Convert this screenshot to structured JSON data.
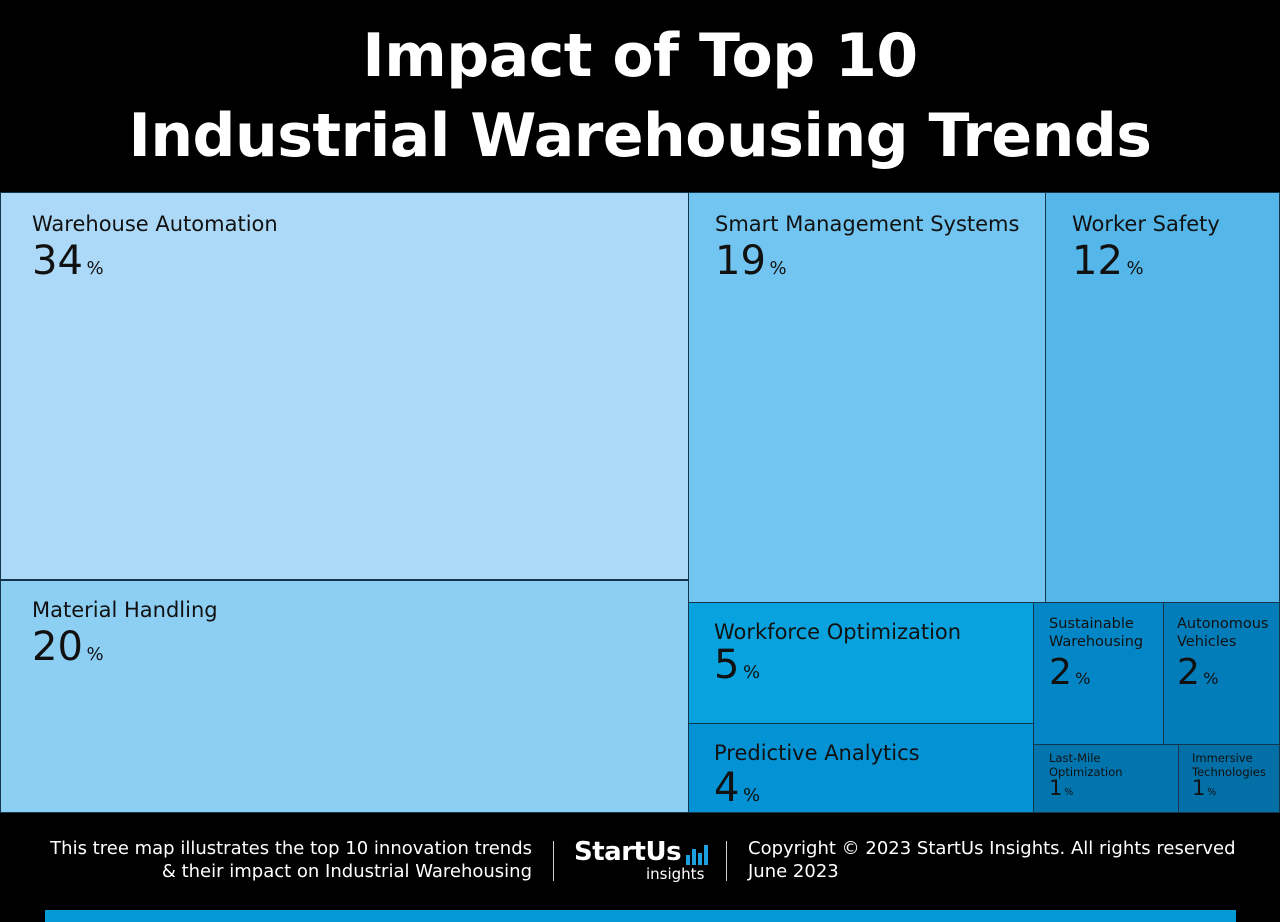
{
  "header": {
    "title_line1": "Impact of Top 10",
    "title_line2": "Industrial Warehousing Trends"
  },
  "chart_data": {
    "type": "treemap",
    "title": "Impact of Top 10 Industrial Warehousing Trends",
    "unit": "%",
    "items": [
      {
        "label": "Warehouse Automation",
        "value": 34,
        "color": "#acd9f7"
      },
      {
        "label": "Material Handling",
        "value": 20,
        "color": "#8dcff3"
      },
      {
        "label": "Smart Management Systems",
        "value": 19,
        "color": "#72c5f0"
      },
      {
        "label": "Worker Safety",
        "value": 12,
        "color": "#55b6e9"
      },
      {
        "label": "Workforce Optimization",
        "value": 5,
        "color": "#08a3de"
      },
      {
        "label": "Predictive Analytics",
        "value": 4,
        "color": "#0393d4"
      },
      {
        "label": "Sustainable Warehousing",
        "value": 2,
        "color": "#0386c6"
      },
      {
        "label": "Autonomous Vehicles",
        "value": 2,
        "color": "#037dba"
      },
      {
        "label": "Last-Mile Optimization",
        "value": 1,
        "color": "#0275af"
      },
      {
        "label": "Immersive Technologies",
        "value": 1,
        "color": "#026fa6"
      }
    ]
  },
  "footer": {
    "description_line1": "This tree map illustrates the top 10 innovation trends",
    "description_line2": "& their impact on Industrial Warehousing",
    "logo_brand": "StartUs",
    "logo_sub": "insights",
    "copyright": "Copyright © 2023 StartUs Insights. All rights reserved",
    "date": "June 2023"
  }
}
